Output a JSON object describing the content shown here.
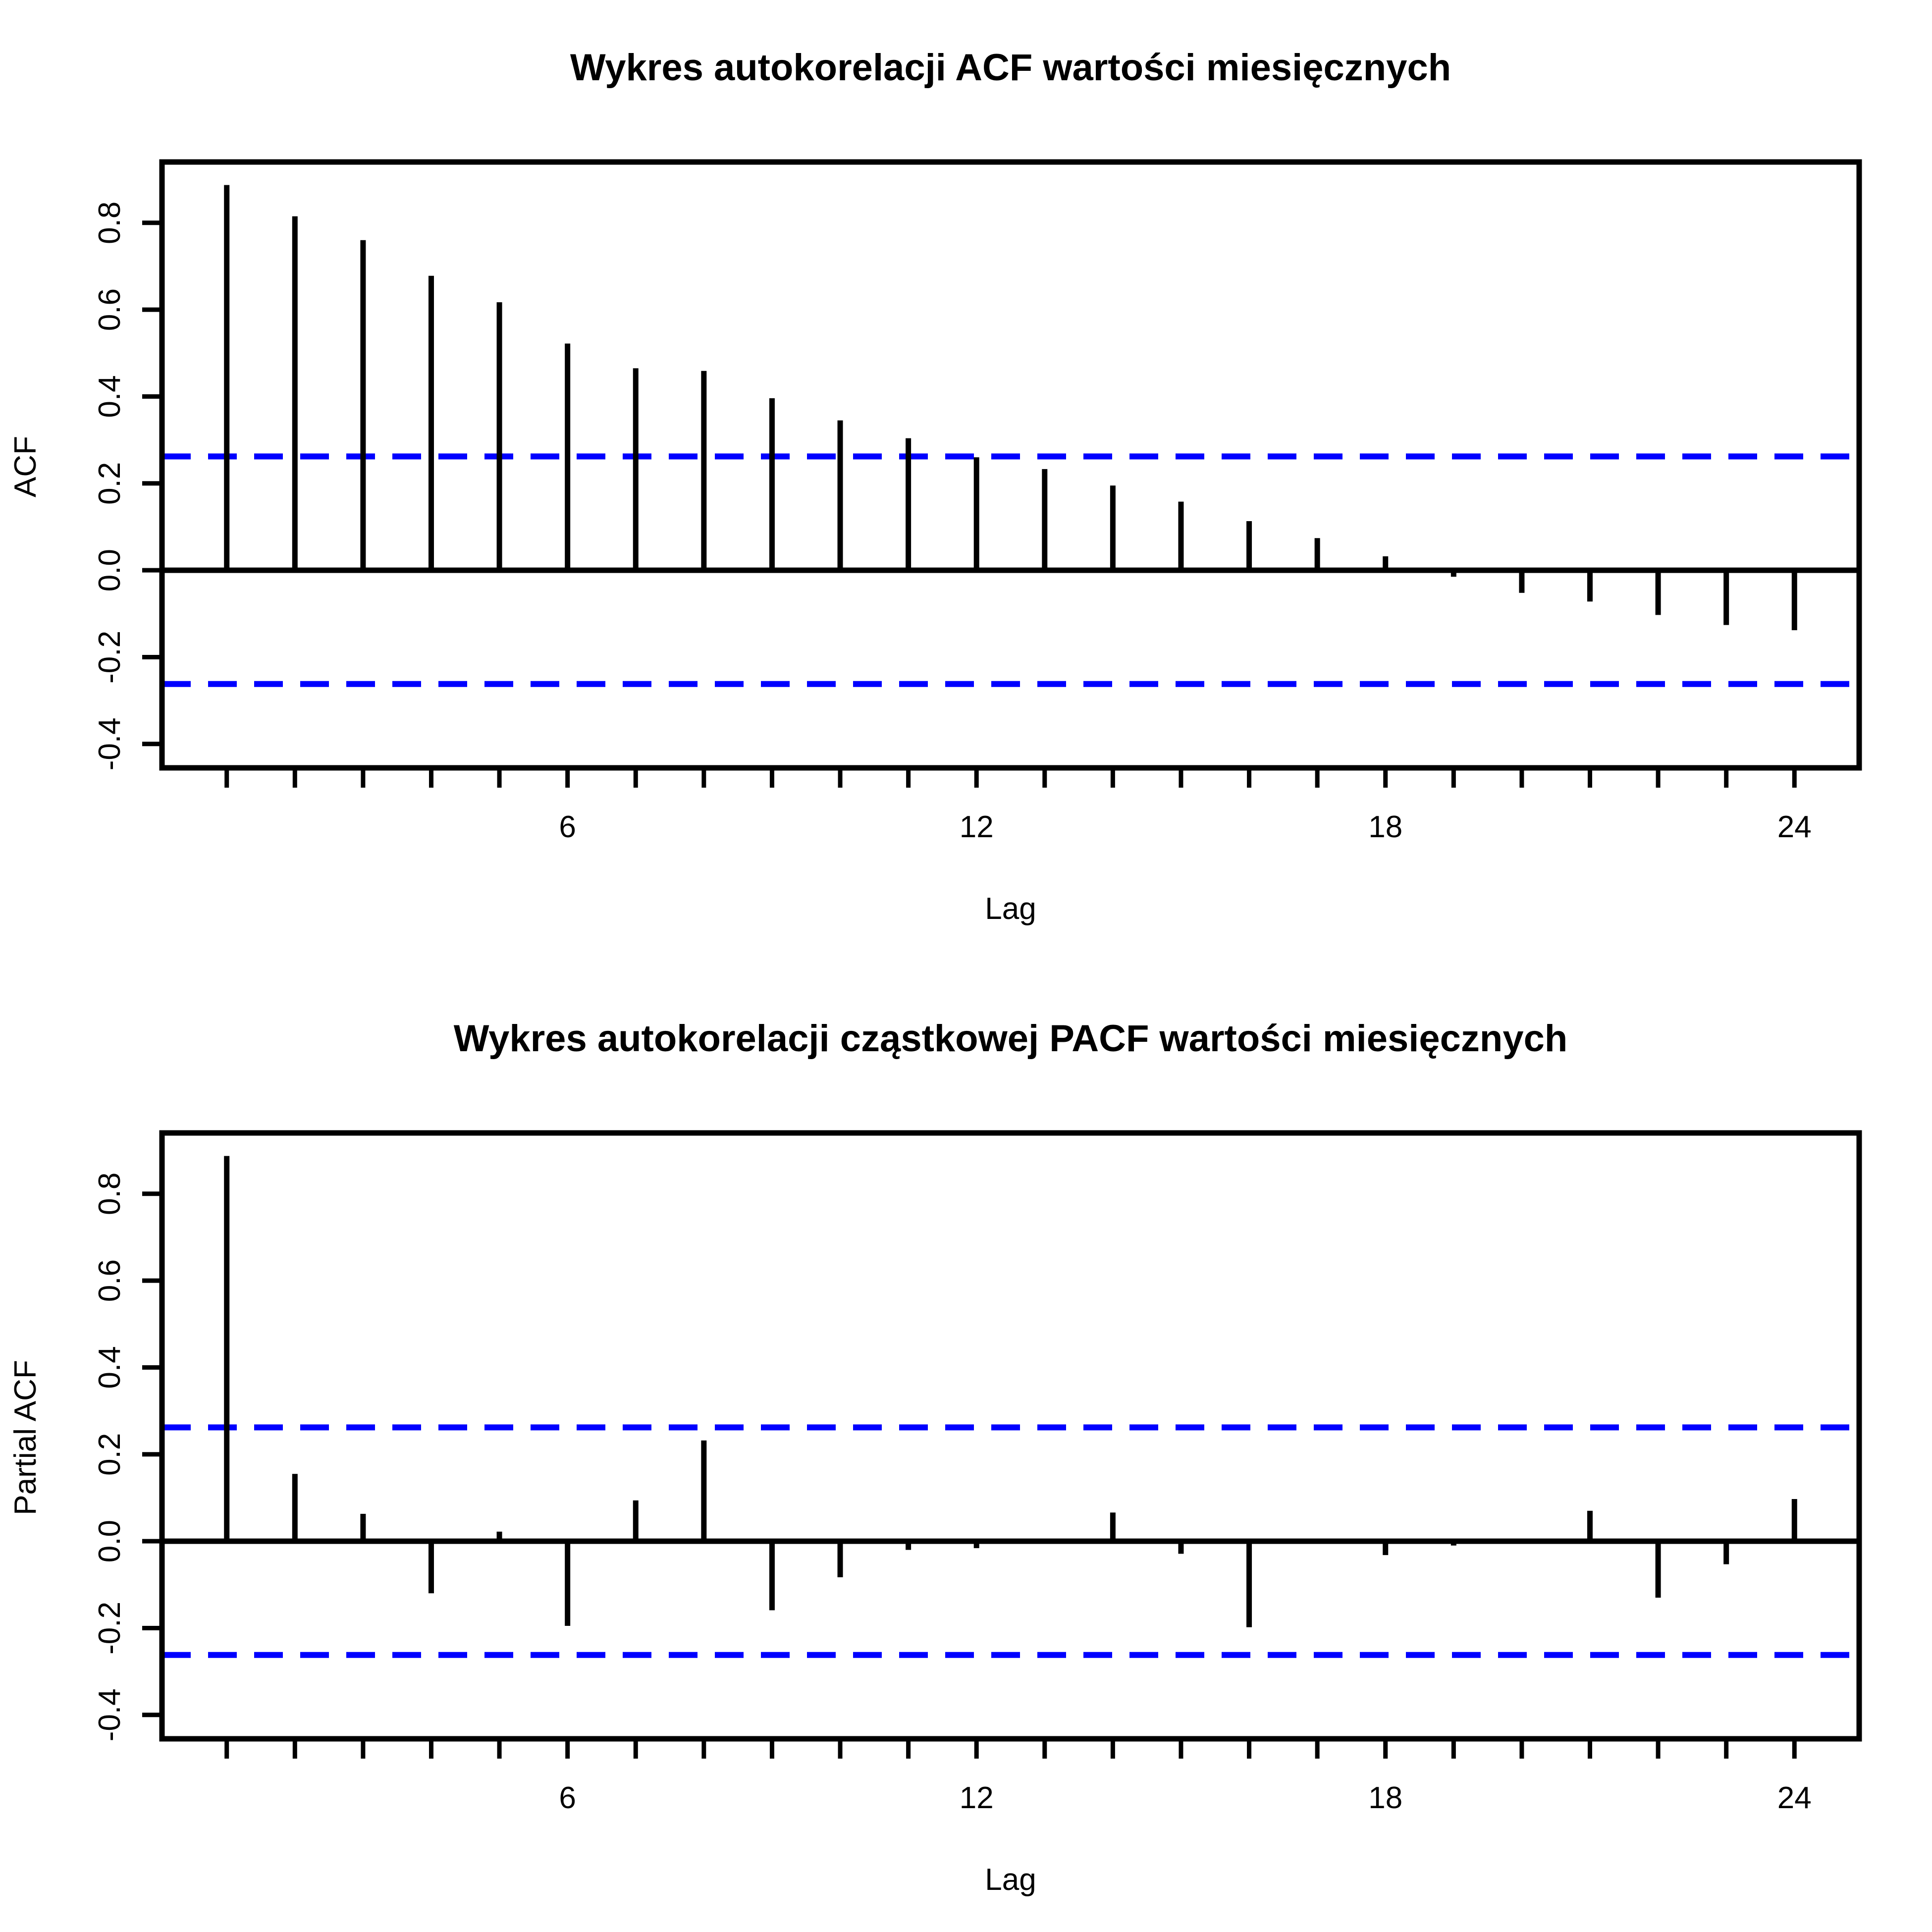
{
  "chart_data": [
    {
      "type": "bar",
      "title": "Wykres autokorelacji ACF wartości miesięcznych",
      "xlabel": "Lag",
      "ylabel": "ACF",
      "xlim": [
        0.05,
        24.95
      ],
      "ylim": [
        -0.455,
        0.94
      ],
      "xticks": [
        1,
        2,
        3,
        4,
        5,
        6,
        7,
        8,
        9,
        10,
        11,
        12,
        13,
        14,
        15,
        16,
        17,
        18,
        19,
        20,
        21,
        22,
        23,
        24
      ],
      "xtick_labels": [
        "6",
        "12",
        "18",
        "24"
      ],
      "xtick_label_values": [
        6,
        12,
        18,
        24
      ],
      "yticks": [
        -0.4,
        -0.2,
        0.0,
        0.2,
        0.4,
        0.6,
        0.8
      ],
      "ytick_labels": [
        "-0.4",
        "-0.2",
        "0.0",
        "0.2",
        "0.4",
        "0.6",
        "0.8"
      ],
      "lags": [
        1,
        2,
        3,
        4,
        5,
        6,
        7,
        8,
        9,
        10,
        11,
        12,
        13,
        14,
        15,
        16,
        17,
        18,
        19,
        20,
        21,
        22,
        23,
        24
      ],
      "values": [
        0.887,
        0.815,
        0.76,
        0.678,
        0.617,
        0.522,
        0.465,
        0.459,
        0.396,
        0.345,
        0.304,
        0.26,
        0.233,
        0.195,
        0.158,
        0.113,
        0.074,
        0.032,
        -0.015,
        -0.052,
        -0.072,
        -0.103,
        -0.126,
        -0.138
      ],
      "confidence_bound": 0.262,
      "confidence_color": "#0000ff",
      "grid": false
    },
    {
      "type": "bar",
      "title": "Wykres autokorelacji cząstkowej PACF wartości miesięcznych",
      "xlabel": "Lag",
      "ylabel": "Partial ACF",
      "xlim": [
        0.05,
        24.95
      ],
      "ylim": [
        -0.455,
        0.94
      ],
      "xticks": [
        1,
        2,
        3,
        4,
        5,
        6,
        7,
        8,
        9,
        10,
        11,
        12,
        13,
        14,
        15,
        16,
        17,
        18,
        19,
        20,
        21,
        22,
        23,
        24
      ],
      "xtick_labels": [
        "6",
        "12",
        "18",
        "24"
      ],
      "xtick_label_values": [
        6,
        12,
        18,
        24
      ],
      "yticks": [
        -0.4,
        -0.2,
        0.0,
        0.2,
        0.4,
        0.6,
        0.8
      ],
      "ytick_labels": [
        "-0.4",
        "-0.2",
        "0.0",
        "0.2",
        "0.4",
        "0.6",
        "0.8"
      ],
      "lags": [
        1,
        2,
        3,
        4,
        5,
        6,
        7,
        8,
        9,
        10,
        11,
        12,
        13,
        14,
        15,
        16,
        17,
        18,
        19,
        20,
        21,
        22,
        23,
        24
      ],
      "values": [
        0.887,
        0.155,
        0.063,
        -0.12,
        0.022,
        -0.195,
        0.094,
        0.232,
        -0.159,
        -0.083,
        -0.02,
        -0.016,
        0.004,
        0.066,
        -0.029,
        -0.198,
        0.0,
        -0.032,
        -0.01,
        0.004,
        0.07,
        -0.13,
        -0.053,
        0.097
      ],
      "confidence_bound": 0.262,
      "confidence_color": "#0000ff",
      "grid": false
    }
  ]
}
